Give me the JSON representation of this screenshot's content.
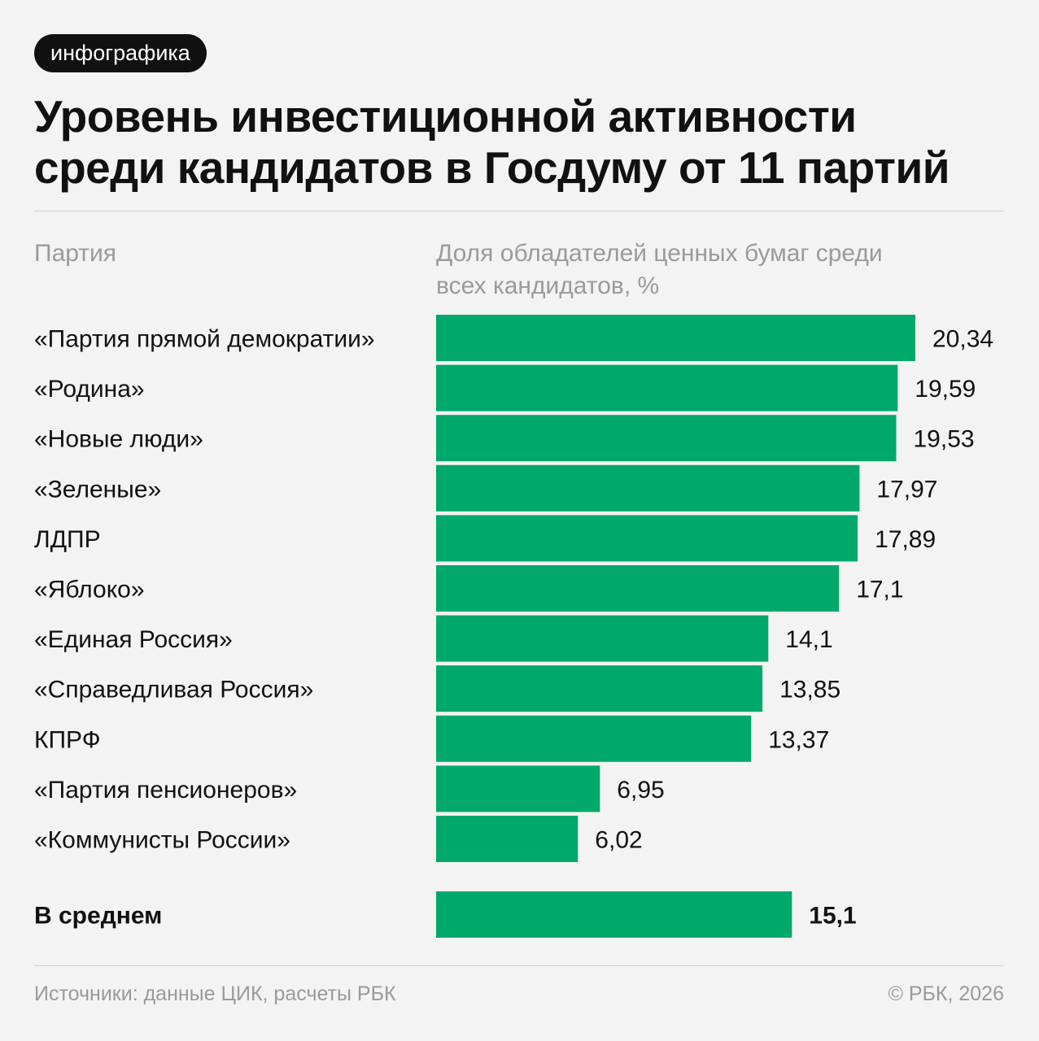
{
  "badge": "инфографика",
  "title_line1": "Уровень инвестиционной активности",
  "title_line2": "среди кандидатов в Госдуму от 11 партий",
  "colors": {
    "bar": "#00a86b",
    "text": "#111111",
    "muted": "#9a9a9a",
    "background": "#f3f3f3"
  },
  "chart_data": {
    "type": "bar",
    "orientation": "horizontal",
    "xlabel": "Партия",
    "ylabel": "Доля обладателей ценных бумаг среди всех кандидатов, %",
    "ylabel_line1": "Доля обладателей ценных бумаг среди",
    "ylabel_line2": "всех кандидатов, %",
    "categories": [
      "«Партия прямой демократии»",
      "«Родина»",
      "«Новые люди»",
      "«Зеленые»",
      "ЛДПР",
      "«Яблоко»",
      "«Единая Россия»",
      "«Справедливая Россия»",
      "КПРФ",
      "«Партия пенсионеров»",
      "«Коммунисты России»"
    ],
    "values": [
      20.34,
      19.59,
      19.53,
      17.97,
      17.89,
      17.1,
      14.1,
      13.85,
      13.37,
      6.95,
      6.02
    ],
    "value_labels": [
      "20,34",
      "19,59",
      "19,53",
      "17,97",
      "17,89",
      "17,1",
      "14,1",
      "13,85",
      "13,37",
      "6,95",
      "6,02"
    ],
    "average": {
      "label": "В среднем",
      "value": 15.1,
      "value_label": "15,1"
    },
    "xlim": [
      0,
      20.34
    ],
    "grid": false,
    "legend": "none"
  },
  "footer": {
    "source": "Источники: данные ЦИК, расчеты РБК",
    "copyright": "© РБК, 2026"
  }
}
